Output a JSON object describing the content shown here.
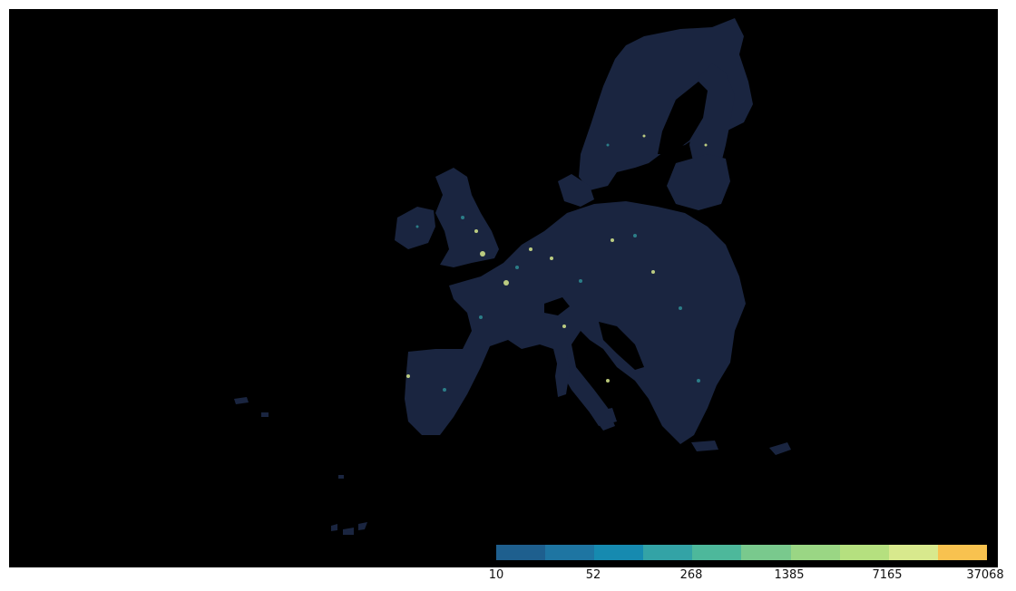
{
  "map": {
    "background_color": "#000000",
    "land_color": "#1a2540",
    "region": "European Union population density grid"
  },
  "legend": {
    "colors": [
      "#1e5f8e",
      "#1e75a2",
      "#168ab0",
      "#33a3a6",
      "#4db89b",
      "#79c98d",
      "#9ad684",
      "#b5e07f",
      "#d8e98d",
      "#f8c24f"
    ],
    "tick_labels": [
      "10",
      "52",
      "268",
      "1385",
      "7165",
      "37068"
    ]
  }
}
